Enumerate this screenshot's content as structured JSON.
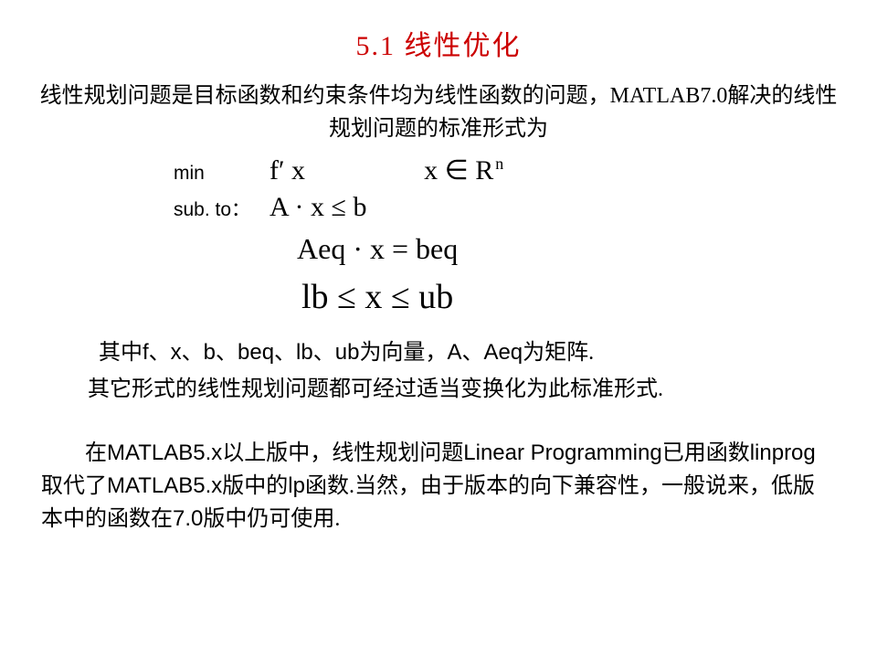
{
  "title": "5.1 线性优化",
  "para1": "线性规划问题是目标函数和约束条件均为线性函数的问题，MATLAB7.0解决的线性规划问题的标准形式为",
  "formula": {
    "min_label": "min",
    "objective": "f′ x",
    "domain_pre": "x ∈ R",
    "domain_sup": "n",
    "subto_label": "sub. to：",
    "ineq": "A · x ≤ b",
    "eq": "Aeq · x = beq",
    "bounds": "lb ≤ x ≤ ub"
  },
  "para2_pre": "其中",
  "para2_vars": "f、x、b、beq、lb、ub",
  "para2_mid": "为向量，",
  "para2_mats": "A、Aeq",
  "para2_end": "为矩阵.",
  "para3": "其它形式的线性规划问题都可经过适当变换化为此标准形式.",
  "para4_a": "在",
  "para4_b": "MATLAB5.x",
  "para4_c": "以上版中，线性规划问题",
  "para4_d": "Linear Programming",
  "para4_e": "已用函数",
  "para4_f": "linprog",
  "para4_g": "取代了",
  "para4_h": "MATLAB5.x",
  "para4_i": "版中的",
  "para4_j": "lp",
  "para4_k": "函数.当然，由于版本的向下兼容性，一般说来，低版本中的函数在",
  "para4_l": "7.0",
  "para4_m": "版中仍可使用."
}
